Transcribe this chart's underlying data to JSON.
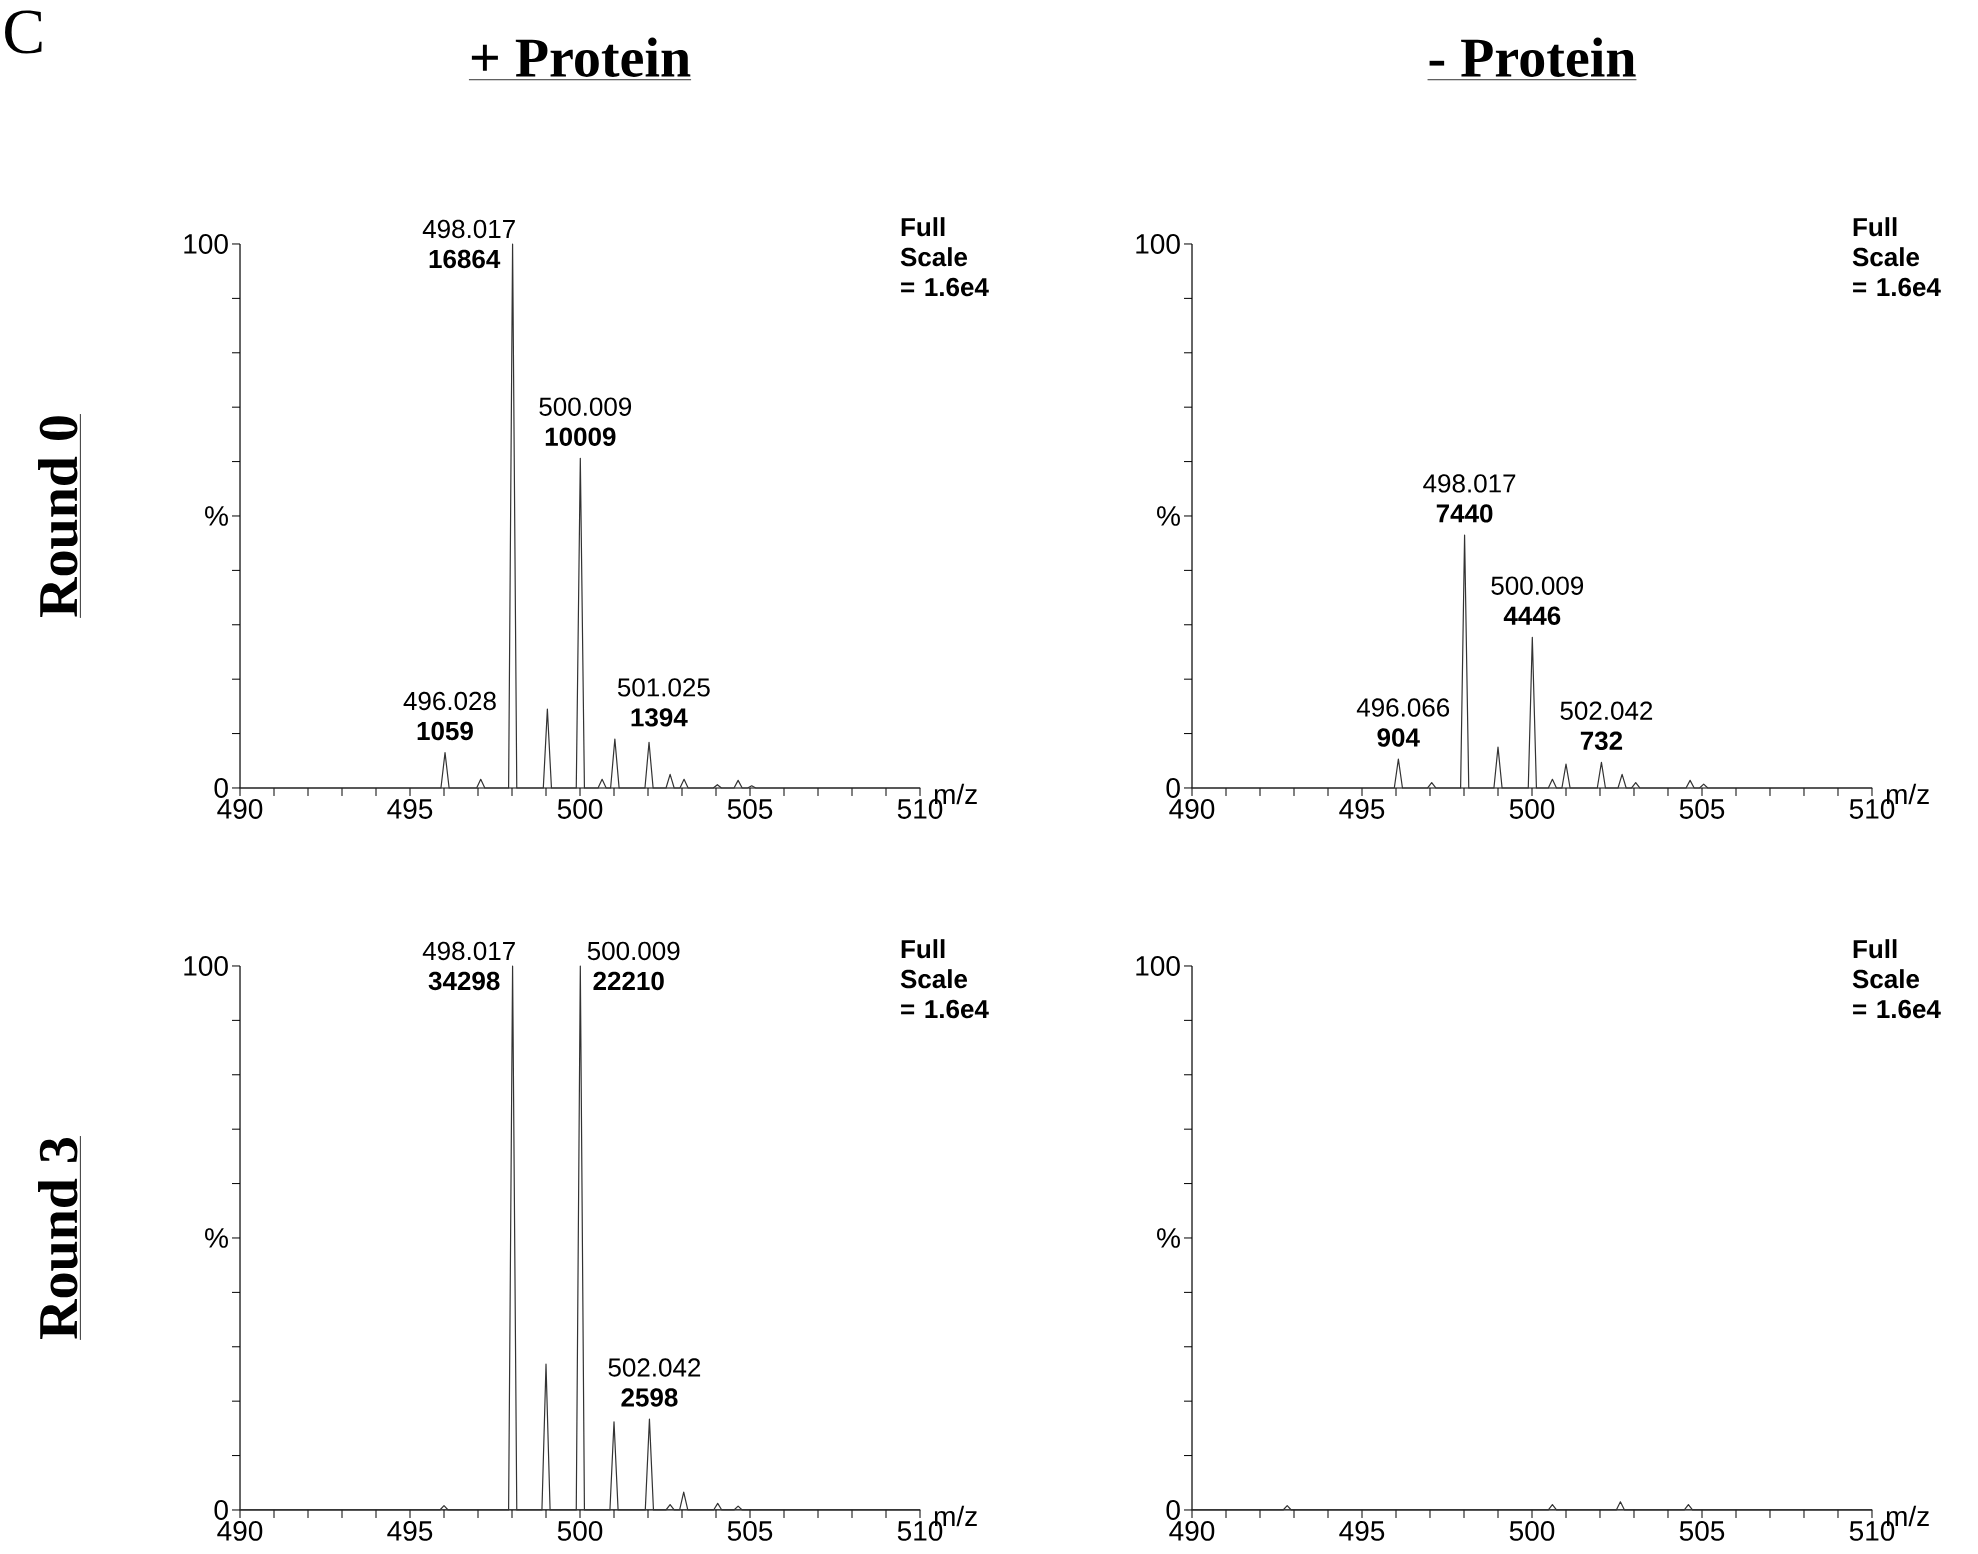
{
  "chart_data": [
    {
      "type": "line",
      "title": "+ Protein",
      "ylabel": "Round 0",
      "xlabel": "m/z",
      "xlim": [
        490,
        510
      ],
      "ylim": [
        0,
        100
      ],
      "xticks": [
        490,
        {
          "value": 491,
          "label": null
        },
        {
          "value": 492,
          "label": null
        },
        {
          "value": 493,
          "label": null
        },
        {
          "value": 494,
          "label": null
        },
        495,
        {
          "value": 496,
          "label": null
        },
        {
          "value": 497,
          "label": null
        },
        {
          "value": 498,
          "label": null
        },
        {
          "value": 499,
          "label": null
        },
        500,
        {
          "value": 501,
          "label": null
        },
        {
          "value": 502,
          "label": null
        },
        {
          "value": 503,
          "label": null
        },
        {
          "value": 504,
          "label": null
        },
        505,
        {
          "value": 506,
          "label": null
        },
        {
          "value": 507,
          "label": null
        },
        {
          "value": 508,
          "label": null
        },
        {
          "value": 509,
          "label": null
        },
        510
      ],
      "yticks": [
        0,
        {
          "value": 10,
          "label": null
        },
        {
          "value": 20,
          "label": null
        },
        {
          "value": 30,
          "label": null
        },
        {
          "value": 40,
          "label": null
        },
        {
          "value": 50,
          "label": "%"
        },
        {
          "value": 60,
          "label": null
        },
        {
          "value": 70,
          "label": null
        },
        {
          "value": 80,
          "label": null
        },
        {
          "value": 90,
          "label": null
        },
        100
      ],
      "series": [
        {
          "color": "#333333",
          "x": [
            490,
            495.91,
            496.03,
            496.15,
            496.96,
            497.08,
            497.2,
            497.9,
            498.017,
            498.14,
            498.92,
            499.04,
            499.16,
            499.89,
            500.009,
            500.13,
            500.53,
            500.65,
            500.77,
            500.9,
            501.025,
            501.15,
            501.91,
            502.03,
            502.15,
            502.53,
            502.65,
            502.77,
            502.94,
            503.06,
            503.18,
            503.92,
            504.04,
            504.16,
            504.53,
            504.65,
            504.77,
            504.93,
            505.05,
            505.17,
            510
          ],
          "values": [
            0,
            0,
            6.5,
            0,
            0,
            1.6,
            0,
            0,
            100,
            0,
            0,
            14.5,
            0,
            0,
            60.6,
            0,
            0,
            1.6,
            0,
            0,
            9,
            0,
            0,
            8.4,
            0,
            0,
            2.5,
            0,
            0,
            1.6,
            0,
            0,
            0.6,
            0,
            0,
            1.4,
            0,
            0,
            0.4,
            0,
            0
          ]
        }
      ],
      "annotations": [
        "Full Scale = 1.6e4",
        "C",
        {
          "text": "498.017 **16864**",
          "x": 498.017,
          "y": 100
        },
        {
          "text": "500.009 **10009**",
          "x": 500.009,
          "y": 60.6
        },
        {
          "text": "496.028 **1059**",
          "x": 496.028,
          "y": 6.5
        },
        {
          "text": "501.025 **1394**",
          "x": 501.025,
          "y": 9
        }
      ]
    },
    {
      "type": "line",
      "title": "- Protein",
      "xlabel": "m/z",
      "xlim": [
        490,
        510
      ],
      "ylim": [
        0,
        100
      ],
      "xticks": [
        490,
        {
          "value": 491,
          "label": null
        },
        {
          "value": 492,
          "label": null
        },
        {
          "value": 493,
          "label": null
        },
        {
          "value": 494,
          "label": null
        },
        495,
        {
          "value": 496,
          "label": null
        },
        {
          "value": 497,
          "label": null
        },
        {
          "value": 498,
          "label": null
        },
        {
          "value": 499,
          "label": null
        },
        500,
        {
          "value": 501,
          "label": null
        },
        {
          "value": 502,
          "label": null
        },
        {
          "value": 503,
          "label": null
        },
        {
          "value": 504,
          "label": null
        },
        505,
        {
          "value": 506,
          "label": null
        },
        {
          "value": 507,
          "label": null
        },
        {
          "value": 508,
          "label": null
        },
        {
          "value": 509,
          "label": null
        },
        510
      ],
      "yticks": [
        0,
        {
          "value": 10,
          "label": null
        },
        {
          "value": 20,
          "label": null
        },
        {
          "value": 30,
          "label": null
        },
        {
          "value": 40,
          "label": null
        },
        {
          "value": 50,
          "label": "%"
        },
        {
          "value": 60,
          "label": null
        },
        {
          "value": 70,
          "label": null
        },
        {
          "value": 80,
          "label": null
        },
        {
          "value": 90,
          "label": null
        },
        100
      ],
      "series": [
        {
          "color": "#333333",
          "x": [
            490,
            495.95,
            496.07,
            496.19,
            496.93,
            497.05,
            497.17,
            497.9,
            498.017,
            498.14,
            498.88,
            499.0,
            499.12,
            499.89,
            500.009,
            500.13,
            500.48,
            500.6,
            500.72,
            500.88,
            501.0,
            501.12,
            501.92,
            502.042,
            502.16,
            502.53,
            502.65,
            502.77,
            502.93,
            503.05,
            503.17,
            504.53,
            504.65,
            504.77,
            504.93,
            505.05,
            505.17,
            510
          ],
          "values": [
            0,
            0,
            5.3,
            0,
            0,
            1,
            0,
            0,
            46.5,
            0,
            0,
            7.5,
            0,
            0,
            27.7,
            0,
            0,
            1.6,
            0,
            0,
            4.4,
            0,
            0,
            4.7,
            0,
            0,
            2.5,
            0,
            0,
            1,
            0,
            0,
            1.4,
            0,
            0,
            0.7,
            0,
            0
          ]
        }
      ],
      "annotations": [
        "Full Scale = 1.6e4",
        {
          "text": "498.017 **7440**",
          "x": 498.017,
          "y": 46.5
        },
        {
          "text": "500.009 **4446**",
          "x": 500.009,
          "y": 27.7
        },
        {
          "text": "496.066 **904**",
          "x": 496.066,
          "y": 5.3
        },
        {
          "text": "502.042 **732**",
          "x": 502.042,
          "y": 4.7
        }
      ]
    },
    {
      "type": "line",
      "ylabel": "Round 3",
      "xlabel": "m/z",
      "xlim": [
        490,
        510
      ],
      "ylim": [
        0,
        100
      ],
      "xticks": [
        490,
        {
          "value": 491,
          "label": null
        },
        {
          "value": 492,
          "label": null
        },
        {
          "value": 493,
          "label": null
        },
        {
          "value": 494,
          "label": null
        },
        495,
        {
          "value": 496,
          "label": null
        },
        {
          "value": 497,
          "label": null
        },
        {
          "value": 498,
          "label": null
        },
        {
          "value": 499,
          "label": null
        },
        500,
        {
          "value": 501,
          "label": null
        },
        {
          "value": 502,
          "label": null
        },
        {
          "value": 503,
          "label": null
        },
        {
          "value": 504,
          "label": null
        },
        505,
        {
          "value": 506,
          "label": null
        },
        {
          "value": 507,
          "label": null
        },
        {
          "value": 508,
          "label": null
        },
        {
          "value": 509,
          "label": null
        },
        510
      ],
      "yticks": [
        0,
        {
          "value": 10,
          "label": null
        },
        {
          "value": 20,
          "label": null
        },
        {
          "value": 30,
          "label": null
        },
        {
          "value": 40,
          "label": null
        },
        {
          "value": 50,
          "label": "%"
        },
        {
          "value": 60,
          "label": null
        },
        {
          "value": 70,
          "label": null
        },
        {
          "value": 80,
          "label": null
        },
        {
          "value": 90,
          "label": null
        },
        100
      ],
      "series": [
        {
          "color": "#333333",
          "x": [
            490,
            495.88,
            496.0,
            496.12,
            497.9,
            498.017,
            498.14,
            498.88,
            499.0,
            499.12,
            499.89,
            500.009,
            500.13,
            500.88,
            501.0,
            501.12,
            501.92,
            502.042,
            502.16,
            502.53,
            502.65,
            502.77,
            502.93,
            503.05,
            503.17,
            503.93,
            504.05,
            504.17,
            504.53,
            504.65,
            504.77,
            510
          ],
          "values": [
            0,
            0,
            0.8,
            0,
            0,
            100,
            0,
            0,
            26.8,
            0,
            0,
            100,
            0,
            0,
            16.2,
            0,
            0,
            16.7,
            0,
            0,
            1,
            0,
            0,
            3.3,
            0,
            0,
            1.2,
            0,
            0,
            0.7,
            0,
            0
          ]
        }
      ],
      "annotations": [
        "Full Scale = 1.6e4",
        {
          "text": "498.017 **34298**",
          "x": 498.017,
          "y": 100
        },
        {
          "text": "500.009 **22210**",
          "x": 500.009,
          "y": 100
        },
        {
          "text": "502.042 **2598**",
          "x": 502.042,
          "y": 16.7
        }
      ]
    },
    {
      "type": "line",
      "xlabel": "m/z",
      "xlim": [
        490,
        510
      ],
      "ylim": [
        0,
        100
      ],
      "xticks": [
        490,
        {
          "value": 491,
          "label": null
        },
        {
          "value": 492,
          "label": null
        },
        {
          "value": 493,
          "label": null
        },
        {
          "value": 494,
          "label": null
        },
        495,
        {
          "value": 496,
          "label": null
        },
        {
          "value": 497,
          "label": null
        },
        {
          "value": 498,
          "label": null
        },
        {
          "value": 499,
          "label": null
        },
        500,
        {
          "value": 501,
          "label": null
        },
        {
          "value": 502,
          "label": null
        },
        {
          "value": 503,
          "label": null
        },
        {
          "value": 504,
          "label": null
        },
        505,
        {
          "value": 506,
          "label": null
        },
        {
          "value": 507,
          "label": null
        },
        {
          "value": 508,
          "label": null
        },
        {
          "value": 509,
          "label": null
        },
        510
      ],
      "yticks": [
        0,
        {
          "value": 10,
          "label": null
        },
        {
          "value": 20,
          "label": null
        },
        {
          "value": 30,
          "label": null
        },
        {
          "value": 40,
          "label": null
        },
        {
          "value": 50,
          "label": "%"
        },
        {
          "value": 60,
          "label": null
        },
        {
          "value": 70,
          "label": null
        },
        {
          "value": 80,
          "label": null
        },
        {
          "value": 90,
          "label": null
        },
        100
      ],
      "series": [
        {
          "color": "#333333",
          "x": [
            490,
            492.68,
            492.8,
            492.92,
            500.48,
            500.6,
            500.72,
            502.48,
            502.6,
            502.72,
            504.48,
            504.6,
            504.72,
            510
          ],
          "values": [
            0,
            0,
            0.8,
            0,
            0,
            1,
            0,
            0,
            1.5,
            0,
            0,
            1,
            0,
            0
          ]
        }
      ],
      "annotations": [
        "Full Scale = 1.6e4"
      ]
    }
  ]
}
